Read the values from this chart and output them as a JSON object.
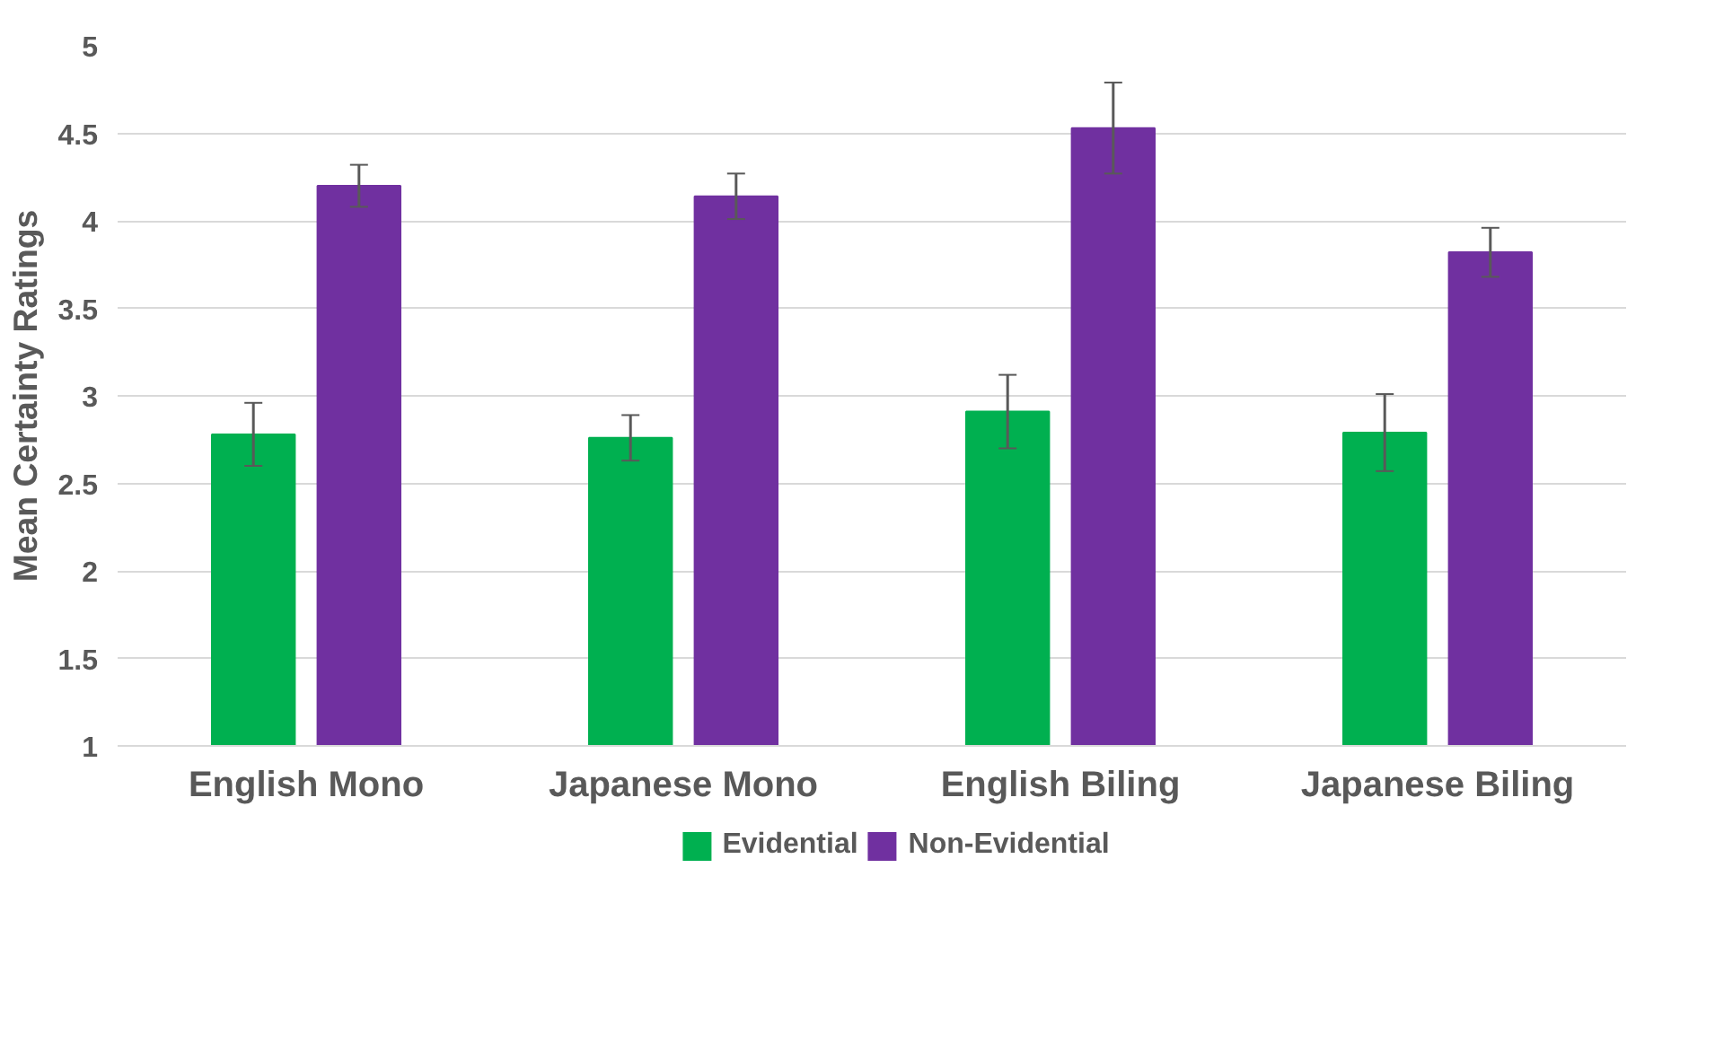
{
  "chart_data": {
    "type": "bar",
    "ylabel": "Mean Certainty Ratings",
    "categories": [
      "English Mono",
      "Japanese Mono",
      "English Biling",
      "Japanese Biling"
    ],
    "series": [
      {
        "name": "Evidential",
        "color": "#00b050",
        "values": [
          2.78,
          2.76,
          2.91,
          2.79
        ],
        "errors": [
          0.18,
          0.13,
          0.21,
          0.22
        ]
      },
      {
        "name": "Non-Evidential",
        "color": "#7030a0",
        "values": [
          4.2,
          4.14,
          4.53,
          3.82
        ],
        "errors": [
          0.12,
          0.13,
          0.26,
          0.14
        ]
      }
    ],
    "ylim": [
      1,
      5
    ],
    "yticks": [
      1,
      1.5,
      2,
      2.5,
      3,
      3.5,
      4,
      4.5,
      5
    ],
    "grid": "y",
    "legend": "bottom"
  }
}
